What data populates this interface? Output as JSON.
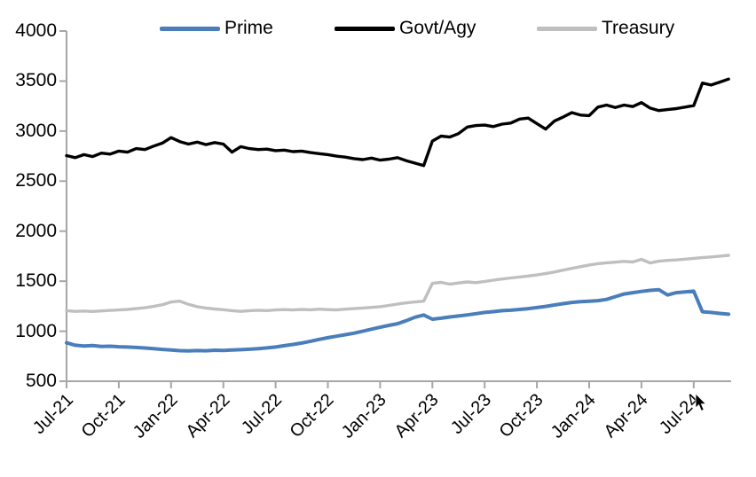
{
  "legend": {
    "items": [
      {
        "label": "Prime",
        "color": "#4a7ebb"
      },
      {
        "label": "Govt/Agy",
        "color": "#000000"
      },
      {
        "label": "Treasury",
        "color": "#bfbfbf"
      }
    ]
  },
  "chart_data": {
    "type": "line",
    "title": "",
    "xlabel": "",
    "ylabel": "",
    "ylim": [
      500,
      4000
    ],
    "y_ticks": [
      500,
      1000,
      1500,
      2000,
      2500,
      3000,
      3500,
      4000
    ],
    "x_tick_labels": [
      "Jul-21",
      "Oct-21",
      "Jan-22",
      "Apr-22",
      "Jul-22",
      "Oct-22",
      "Jan-23",
      "Apr-23",
      "Jul-23",
      "Oct-23",
      "Jan-24",
      "Apr-24",
      "Jul-24"
    ],
    "x_tick_positions_months": [
      0,
      3,
      6,
      9,
      12,
      15,
      18,
      21,
      24,
      27,
      30,
      33,
      36
    ],
    "x_step_months": 0.5,
    "grid": false,
    "legend_position": "top",
    "axis_color": "#a6a6a6",
    "series": [
      {
        "name": "Treasury",
        "color": "#bfbfbf",
        "width": 3.4,
        "values": [
          1205,
          1198,
          1202,
          1197,
          1203,
          1208,
          1212,
          1218,
          1226,
          1235,
          1248,
          1265,
          1292,
          1300,
          1268,
          1245,
          1232,
          1222,
          1215,
          1205,
          1198,
          1205,
          1210,
          1206,
          1212,
          1216,
          1212,
          1218,
          1214,
          1220,
          1216,
          1213,
          1220,
          1226,
          1232,
          1238,
          1245,
          1258,
          1272,
          1283,
          1292,
          1300,
          1478,
          1488,
          1470,
          1482,
          1492,
          1485,
          1498,
          1510,
          1522,
          1532,
          1542,
          1552,
          1562,
          1576,
          1592,
          1610,
          1628,
          1645,
          1662,
          1675,
          1684,
          1690,
          1698,
          1692,
          1718,
          1682,
          1700,
          1708,
          1712,
          1720,
          1728,
          1735,
          1742,
          1750,
          1758
        ]
      },
      {
        "name": "Prime",
        "color": "#4a7ebb",
        "width": 4,
        "values": [
          885,
          860,
          852,
          856,
          848,
          850,
          845,
          842,
          838,
          832,
          825,
          818,
          812,
          806,
          803,
          807,
          805,
          810,
          808,
          812,
          815,
          820,
          826,
          833,
          842,
          855,
          868,
          882,
          900,
          918,
          935,
          950,
          965,
          980,
          1000,
          1020,
          1040,
          1058,
          1075,
          1105,
          1140,
          1162,
          1120,
          1130,
          1142,
          1152,
          1163,
          1175,
          1188,
          1196,
          1205,
          1210,
          1218,
          1226,
          1236,
          1248,
          1262,
          1275,
          1288,
          1295,
          1300,
          1305,
          1318,
          1345,
          1372,
          1385,
          1398,
          1408,
          1415,
          1362,
          1385,
          1393,
          1400,
          1195,
          1188,
          1178,
          1170
        ]
      },
      {
        "name": "Govt/Agy",
        "color": "#000000",
        "width": 3.4,
        "values": [
          2755,
          2735,
          2765,
          2745,
          2780,
          2770,
          2800,
          2790,
          2825,
          2815,
          2850,
          2880,
          2935,
          2895,
          2870,
          2890,
          2865,
          2885,
          2870,
          2790,
          2845,
          2825,
          2815,
          2820,
          2805,
          2810,
          2795,
          2800,
          2785,
          2775,
          2765,
          2750,
          2740,
          2725,
          2715,
          2730,
          2710,
          2720,
          2735,
          2705,
          2680,
          2655,
          2900,
          2950,
          2940,
          2975,
          3040,
          3055,
          3060,
          3045,
          3070,
          3080,
          3120,
          3130,
          3075,
          3020,
          3100,
          3140,
          3185,
          3160,
          3155,
          3240,
          3260,
          3235,
          3260,
          3245,
          3285,
          3230,
          3205,
          3215,
          3225,
          3240,
          3255,
          3480,
          3460,
          3490,
          3520
        ]
      }
    ]
  }
}
